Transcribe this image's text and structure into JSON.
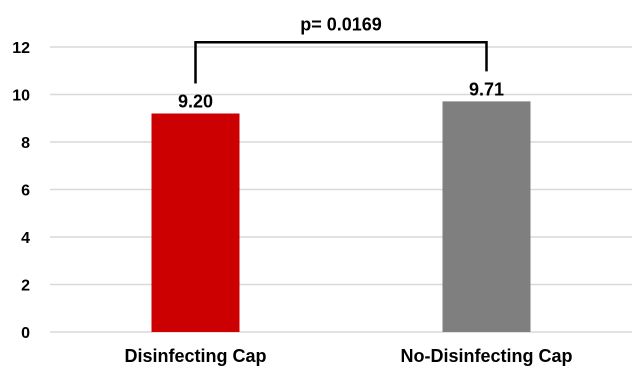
{
  "chart_data": {
    "type": "bar",
    "categories": [
      "Disinfecting Cap",
      "No-Disinfecting Cap"
    ],
    "values": [
      9.2,
      9.71
    ],
    "value_labels": [
      "9.20",
      "9.71"
    ],
    "colors": [
      "#cc0000",
      "#7f7f7f"
    ],
    "ylim": [
      0,
      12
    ],
    "yticks": [
      "0",
      "2",
      "4",
      "6",
      "8",
      "10",
      "12"
    ],
    "grid": true,
    "title": "",
    "xlabel": "",
    "ylabel": "",
    "annotation": {
      "text": "p= 0.0169",
      "bracket_value": 12.2
    }
  }
}
